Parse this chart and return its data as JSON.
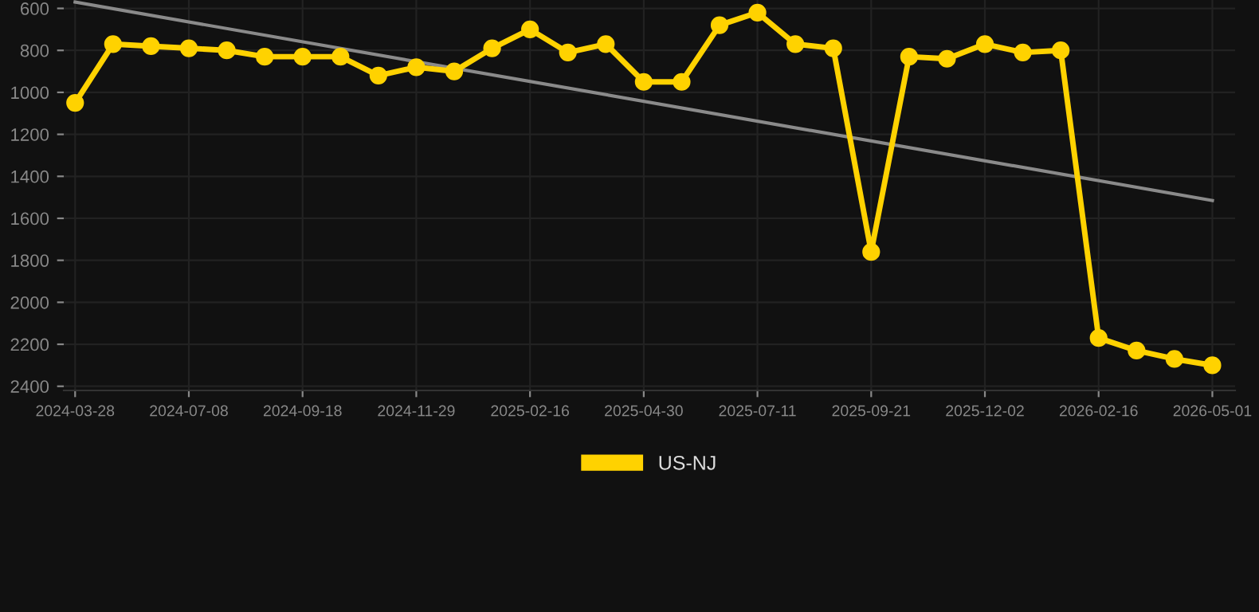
{
  "chart_data": {
    "type": "line",
    "categories": [
      "2024-03-28",
      null,
      null,
      "2024-07-08",
      null,
      null,
      "2024-09-18",
      null,
      null,
      "2024-11-29",
      null,
      null,
      "2025-02-16",
      null,
      null,
      "2025-04-30",
      null,
      null,
      "2025-07-11",
      null,
      null,
      "2025-09-21",
      null,
      null,
      "2025-12-02",
      null,
      null,
      "2026-02-16",
      null,
      null,
      "2026-05-01"
    ],
    "series": [
      {
        "name": "US-NJ",
        "color": "#ffd200",
        "marker": "circle",
        "values": [
          1050,
          770,
          780,
          790,
          800,
          830,
          830,
          830,
          920,
          880,
          900,
          790,
          700,
          810,
          770,
          950,
          950,
          680,
          620,
          770,
          790,
          1760,
          830,
          840,
          770,
          810,
          800,
          2170,
          2230,
          2270,
          2300
        ]
      },
      {
        "type": "line",
        "color": "#8a8a8a",
        "marker": "none",
        "values": [
          570,
          null,
          null,
          null,
          null,
          null,
          null,
          null,
          null,
          null,
          null,
          null,
          null,
          null,
          null,
          null,
          null,
          null,
          null,
          null,
          null,
          null,
          null,
          null,
          null,
          null,
          null,
          null,
          null,
          null,
          1515
        ]
      }
    ],
    "ylim": [
      2420,
      560
    ],
    "yticks": [
      600,
      800,
      1000,
      1200,
      1400,
      1600,
      1800,
      2000,
      2200,
      2400
    ],
    "grid": true,
    "legend": "bottom",
    "line_style": "solid"
  }
}
